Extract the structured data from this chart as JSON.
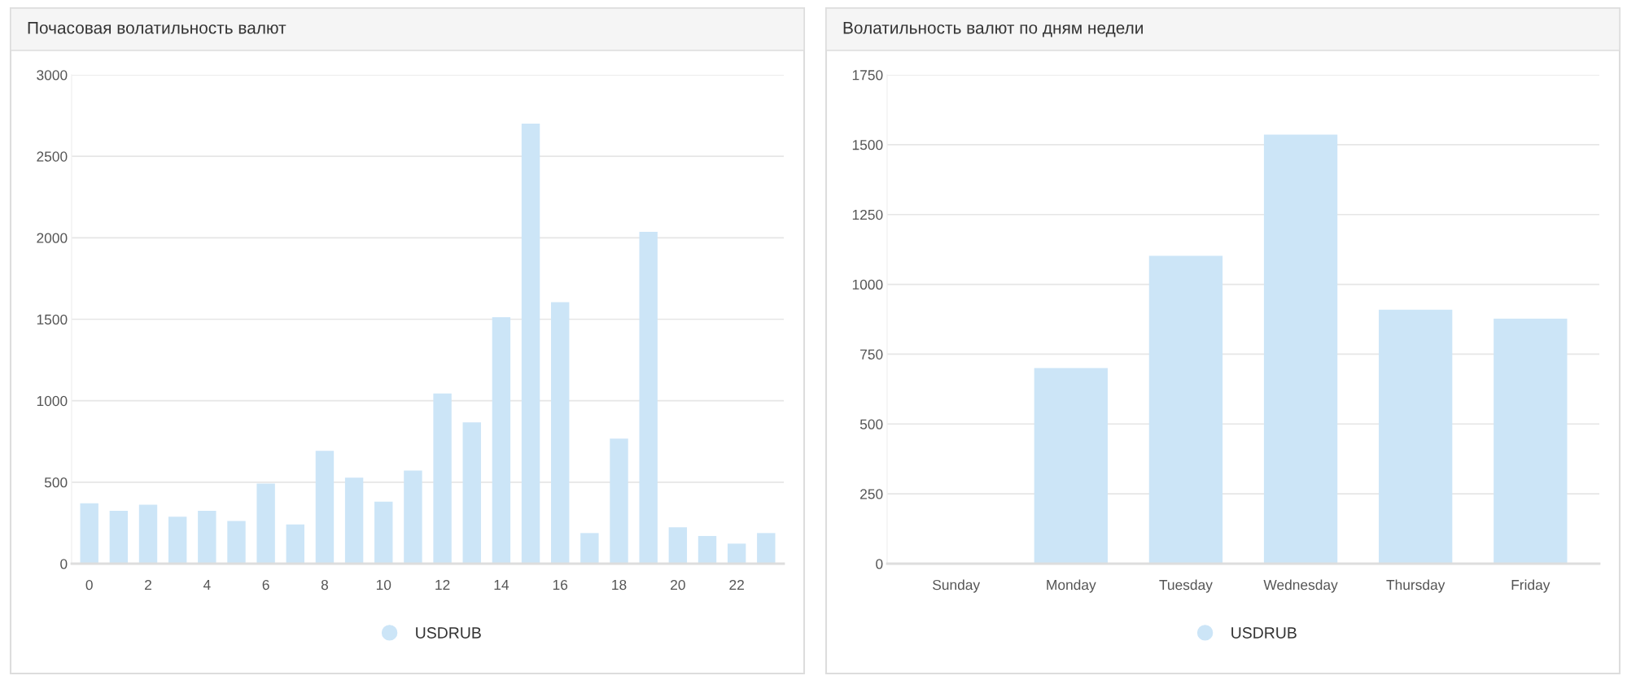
{
  "chart_data": [
    {
      "type": "bar",
      "title": "Почасовая волатильность валют",
      "categories": [
        "0",
        null,
        "2",
        null,
        "4",
        null,
        "6",
        null,
        "8",
        null,
        "10",
        null,
        "12",
        null,
        "14",
        null,
        "16",
        null,
        "18",
        null,
        "20",
        null,
        "22",
        null
      ],
      "series": [
        {
          "name": "USDRUB",
          "color": "#cce5f7",
          "values": [
            371,
            324,
            362,
            288,
            324,
            262,
            492,
            241,
            693,
            528,
            380,
            572,
            1044,
            867,
            1513,
            2701,
            1605,
            188,
            767,
            2037,
            224,
            170,
            123,
            188
          ]
        }
      ],
      "ylim": [
        0,
        3000
      ],
      "yticks": [
        0,
        500,
        1000,
        1500,
        2000,
        2500,
        3000
      ],
      "grid": "y",
      "legend": "bottom"
    },
    {
      "type": "bar",
      "title": "Волатильность валют по дням недели",
      "categories": [
        "Sunday",
        "Monday",
        "Tuesday",
        "Wednesday",
        "Thursday",
        "Friday"
      ],
      "series": [
        {
          "name": "USDRUB",
          "color": "#cce5f7",
          "values": [
            0,
            700,
            1102,
            1536,
            909,
            877
          ]
        }
      ],
      "ylim": [
        0,
        1750
      ],
      "yticks": [
        0,
        250,
        500,
        750,
        1000,
        1250,
        1500,
        1750
      ],
      "grid": "y",
      "legend": "bottom"
    }
  ]
}
